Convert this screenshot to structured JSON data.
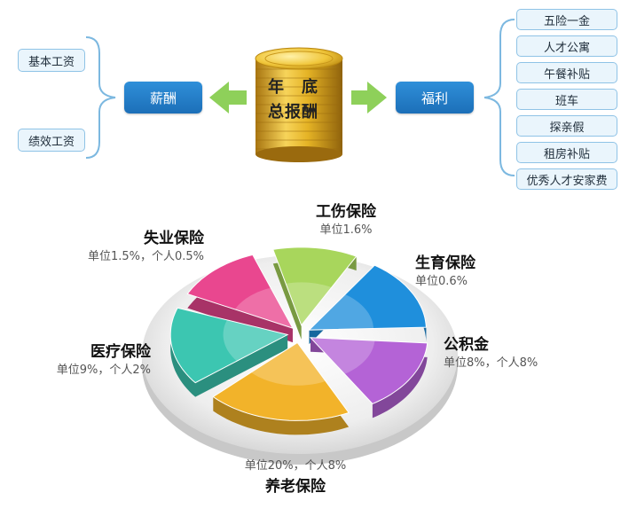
{
  "center": {
    "line1": "年　底",
    "line2": "总报酬"
  },
  "salary": {
    "label": "薪酬",
    "items": [
      "基本工资",
      "绩效工资"
    ]
  },
  "welfare": {
    "label": "福利",
    "items": [
      "五险一金",
      "人才公寓",
      "午餐补贴",
      "班车",
      "探亲假",
      "租房补贴",
      "优秀人才安家费"
    ]
  },
  "colors": {
    "main_box": "#1c6fb8",
    "arrow": "#8ed05a",
    "gold": "#e8b928",
    "brace": "#7cb8e0"
  },
  "chart_data": {
    "type": "pie",
    "slices": [
      {
        "name": "工伤保险",
        "rate": "单位1.6%",
        "color": "#a8d65c"
      },
      {
        "name": "生育保险",
        "rate": "单位0.6%",
        "color": "#1f8fdc"
      },
      {
        "name": "公积金",
        "rate": "单位8%，个人8%",
        "color": "#b463d6"
      },
      {
        "name": "养老保险",
        "rate": "单位20%，个人8%",
        "color": "#f2b32a"
      },
      {
        "name": "医疗保险",
        "rate": "单位9%，个人2%",
        "color": "#3cc6b1"
      },
      {
        "name": "失业保险",
        "rate": "单位1.5%，个人0.5%",
        "color": "#e9478f"
      }
    ]
  }
}
